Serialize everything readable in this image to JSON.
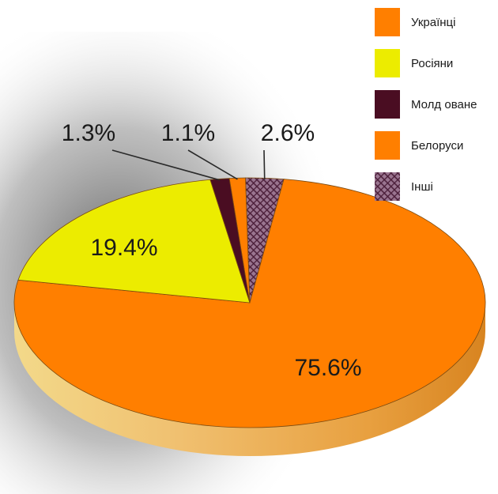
{
  "chart_data": {
    "type": "pie",
    "slices": [
      {
        "label": "Українці",
        "value": 75.6,
        "value_label": "75.6%",
        "color": "#ff7f00"
      },
      {
        "label": "Росіяни",
        "value": 19.4,
        "value_label": "19.4%",
        "color": "#ecec00"
      },
      {
        "label": "Молдоване",
        "value": 1.3,
        "value_label": "1.3%",
        "color": "#4a0d22"
      },
      {
        "label": "Белоруси",
        "value": 1.1,
        "value_label": "1.1%",
        "color": "#ff7f00"
      },
      {
        "label": "Інші",
        "value": 2.6,
        "value_label": "2.6%",
        "color": "#6b3a55",
        "pattern": "crosshatch"
      }
    ],
    "legend": {
      "placement": "top-right",
      "items": [
        {
          "label": "Українці",
          "color": "#ff7f00"
        },
        {
          "label": "Росіяни",
          "color": "#ecec00"
        },
        {
          "label": "Молд оване",
          "color": "#4a0d22"
        },
        {
          "label": "Белоруси",
          "color": "#ff7f00"
        },
        {
          "label": "Інші",
          "color": "#6b3a55",
          "pattern": "crosshatch"
        }
      ]
    },
    "style": "3d-tilted-pie"
  }
}
